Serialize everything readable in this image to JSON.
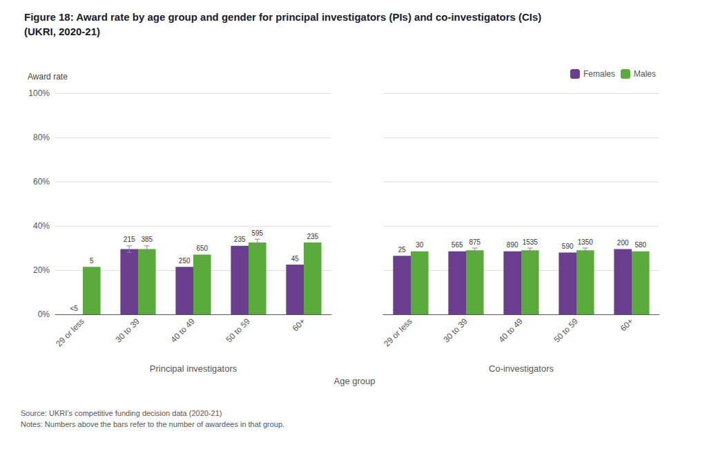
{
  "chart_data": [
    {
      "type": "bar",
      "title": "Figure 18: Award rate by age group and gender for principal investigators (PIs) and co-investigators (CIs)",
      "subtitle": "(UKRI, 2020-21)",
      "ylabel": "Award rate",
      "xlabel": "Age group",
      "notes": "Source: UKRI’s competitive funding decision data (2020-21)\nNotes: Numbers above the bars refer to the number of awardees in that group.",
      "panel_label": "Principal investigators",
      "categories": [
        "29 or less",
        "30 to 39",
        "40 to 49",
        "50 to 59",
        "60+"
      ],
      "series": [
        {
          "name": "Females",
          "color": "#6a3d8f",
          "values": [
            null,
            0.295,
            0.215,
            0.31,
            0.225
          ],
          "errors": [
            null,
            0.015,
            null,
            null,
            null
          ],
          "counts": [
            "<5",
            "215",
            "250",
            "235",
            "45"
          ]
        },
        {
          "name": "Males",
          "color": "#5aaa3c",
          "values": [
            0.215,
            0.295,
            0.27,
            0.325,
            0.325
          ],
          "errors": [
            null,
            0.015,
            null,
            0.015,
            null
          ],
          "counts": [
            "5",
            "385",
            "650",
            "595",
            "235"
          ]
        }
      ],
      "ylim": [
        0,
        1
      ],
      "yticks": [
        {
          "value": 0,
          "label": "0%"
        },
        {
          "value": 0.2,
          "label": "20%"
        },
        {
          "value": 0.4,
          "label": "40%"
        },
        {
          "value": 0.6,
          "label": "60%"
        },
        {
          "value": 0.8,
          "label": "80%"
        },
        {
          "value": 1,
          "label": "100%"
        }
      ],
      "grid": true
    },
    {
      "type": "bar",
      "panel_label": "Co-investigators",
      "categories": [
        "29 or less",
        "30 to 39",
        "40 to 49",
        "50 to 59",
        "60+"
      ],
      "series": [
        {
          "name": "Females",
          "color": "#6a3d8f",
          "values": [
            0.265,
            0.285,
            0.285,
            0.28,
            0.295
          ],
          "errors": [
            null,
            null,
            null,
            null,
            null
          ],
          "counts": [
            "25",
            "565",
            "890",
            "590",
            "200"
          ]
        },
        {
          "name": "Males",
          "color": "#5aaa3c",
          "values": [
            0.285,
            0.29,
            0.29,
            0.29,
            0.285
          ],
          "errors": [
            null,
            0.01,
            0.01,
            0.01,
            null
          ],
          "counts": [
            "30",
            "875",
            "1535",
            "1350",
            "580"
          ]
        }
      ],
      "ylim": [
        0,
        1
      ],
      "yticks": [
        {
          "value": 0,
          "label": "0%"
        },
        {
          "value": 0.2,
          "label": "20%"
        },
        {
          "value": 0.4,
          "label": "40%"
        },
        {
          "value": 0.6,
          "label": "60%"
        },
        {
          "value": 0.8,
          "label": "80%"
        },
        {
          "value": 1,
          "label": "100%"
        }
      ],
      "grid": true,
      "tick_labels": "x",
      "legend": "upper right"
    }
  ]
}
